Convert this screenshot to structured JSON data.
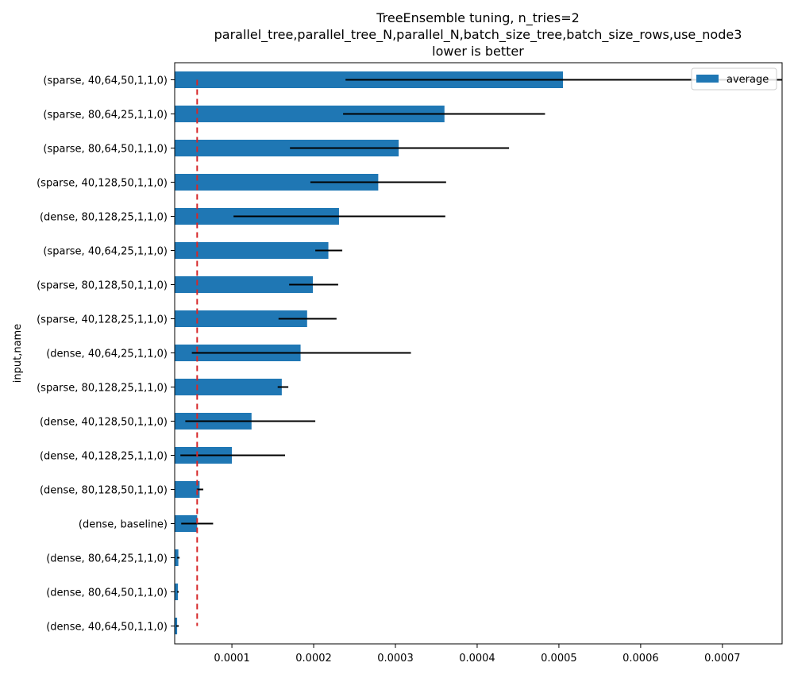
{
  "chart_data": {
    "type": "bar",
    "orientation": "horizontal",
    "title_lines": [
      "TreeEnsemble tuning, n_tries=2",
      "parallel_tree,parallel_tree_N,parallel_N,batch_size_tree,batch_size_rows,use_node3",
      "lower is better"
    ],
    "ylabel": "input,name",
    "xlabel": "",
    "xlim": [
      3e-05,
      0.000773
    ],
    "x_ticks": [
      0.0001,
      0.0002,
      0.0003,
      0.0004,
      0.0005,
      0.0006,
      0.0007
    ],
    "x_tick_labels": [
      "0.0001",
      "0.0002",
      "0.0003",
      "0.0004",
      "0.0005",
      "0.0006",
      "0.0007"
    ],
    "categories": [
      "(sparse, 40,64,50,1,1,0)",
      "(sparse, 80,64,25,1,1,0)",
      "(sparse, 80,64,50,1,1,0)",
      "(sparse, 40,128,50,1,1,0)",
      "(dense, 80,128,25,1,1,0)",
      "(sparse, 40,64,25,1,1,0)",
      "(sparse, 80,128,50,1,1,0)",
      "(sparse, 40,128,25,1,1,0)",
      "(dense, 40,64,25,1,1,0)",
      "(sparse, 80,128,25,1,1,0)",
      "(dense, 40,128,50,1,1,0)",
      "(dense, 40,128,25,1,1,0)",
      "(dense, 80,128,50,1,1,0)",
      "(dense, baseline)",
      "(dense, 80,64,25,1,1,0)",
      "(dense, 80,64,50,1,1,0)",
      "(dense, 40,64,50,1,1,0)"
    ],
    "series": [
      {
        "name": "average",
        "color": "#1f77b4",
        "values": [
          0.000505,
          0.00036,
          0.000304,
          0.000279,
          0.000231,
          0.000218,
          0.000199,
          0.000192,
          0.000184,
          0.000161,
          0.000124,
          0.0001,
          6.05e-05,
          5.75e-05,
          3.45e-05,
          3.4e-05,
          3.3e-05
        ],
        "err_low": [
          0.000239,
          0.000236,
          0.000171,
          0.000196,
          0.000102,
          0.000202,
          0.00017,
          0.000157,
          5.1e-05,
          0.000156,
          4.3e-05,
          3.7e-05,
          5.7e-05,
          3.8e-05,
          3.3e-05,
          3.3e-05,
          3.2e-05
        ],
        "err_high": [
          0.000781,
          0.000483,
          0.000439,
          0.000362,
          0.000361,
          0.000235,
          0.00023,
          0.000228,
          0.000319,
          0.000169,
          0.000202,
          0.000165,
          6.5e-05,
          7.7e-05,
          3.6e-05,
          3.5e-05,
          3.5e-05
        ]
      }
    ],
    "reference_line": {
      "value": 5.75e-05,
      "color": "#d62728",
      "style": "dashed"
    },
    "legend": {
      "position": "top-right"
    },
    "error_bar_color": "#000000",
    "grid": false
  }
}
